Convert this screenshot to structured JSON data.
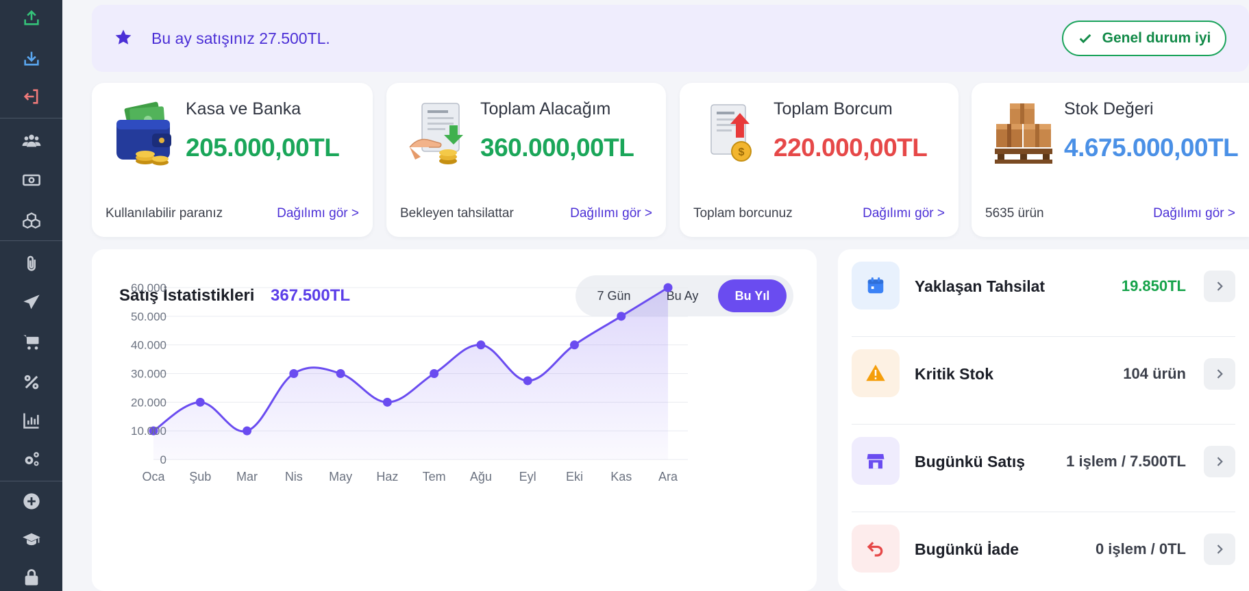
{
  "banner": {
    "text": "Bu ay satışınız 27.500TL.",
    "status": "Genel durum iyi"
  },
  "cards": [
    {
      "title": "Kasa ve Banka",
      "value": "205.000,00TL",
      "sub": "Kullanılabilir paranız",
      "link": "Dağılımı gör >",
      "color": "#1aa659"
    },
    {
      "title": "Toplam Alacağım",
      "value": "360.000,00TL",
      "sub": "Bekleyen tahsilattar",
      "link": "Dağılımı gör >",
      "color": "#1aa659"
    },
    {
      "title": "Toplam Borcum",
      "value": "220.000,00TL",
      "sub": "Toplam borcunuz",
      "link": "Dağılımı gör >",
      "color": "#e64848"
    },
    {
      "title": "Stok Değeri",
      "value": "4.675.000,00TL",
      "sub": "5635 ürün",
      "link": "Dağılımı gör >",
      "color": "#4a90e6"
    }
  ],
  "chart": {
    "title": "Satış İstatistikleri",
    "total": "367.500TL",
    "tabs": [
      "7 Gün",
      "Bu Ay",
      "Bu Yıl"
    ],
    "active_tab": "Bu Yıl"
  },
  "chart_data": {
    "type": "area",
    "categories": [
      "Oca",
      "Şub",
      "Mar",
      "Nis",
      "May",
      "Haz",
      "Tem",
      "Ağu",
      "Eyl",
      "Eki",
      "Kas",
      "Ara"
    ],
    "values": [
      10000,
      20000,
      10000,
      30000,
      30000,
      20000,
      30000,
      40000,
      27500,
      40000,
      50000,
      60000
    ],
    "yticks": [
      "0",
      "10.000",
      "20.000",
      "30.000",
      "40.000",
      "50.000",
      "60.000"
    ],
    "ylim": [
      0,
      60000
    ],
    "grid": true,
    "color": "#6a4cf0"
  },
  "list": [
    {
      "label": "Yaklaşan Tahsilat",
      "value": "19.850TL",
      "icon": "calendar-icon",
      "value_color": "#16a34a",
      "bg": "#e8f1fd",
      "fg": "#3b82f6"
    },
    {
      "label": "Kritik Stok",
      "value": "104 ürün",
      "icon": "warning-icon",
      "value_color": "#3b3f4a",
      "bg": "#fdf1e3",
      "fg": "#f59e0b"
    },
    {
      "label": "Bugünkü Satış",
      "value": "1 işlem / 7.500TL",
      "icon": "store-icon",
      "value_color": "#3b3f4a",
      "bg": "#efecfd",
      "fg": "#6a4cf0"
    },
    {
      "label": "Bugünkü İade",
      "value": "0 işlem / 0TL",
      "icon": "return-icon",
      "value_color": "#3b3f4a",
      "bg": "#fdecec",
      "fg": "#e64848"
    }
  ]
}
